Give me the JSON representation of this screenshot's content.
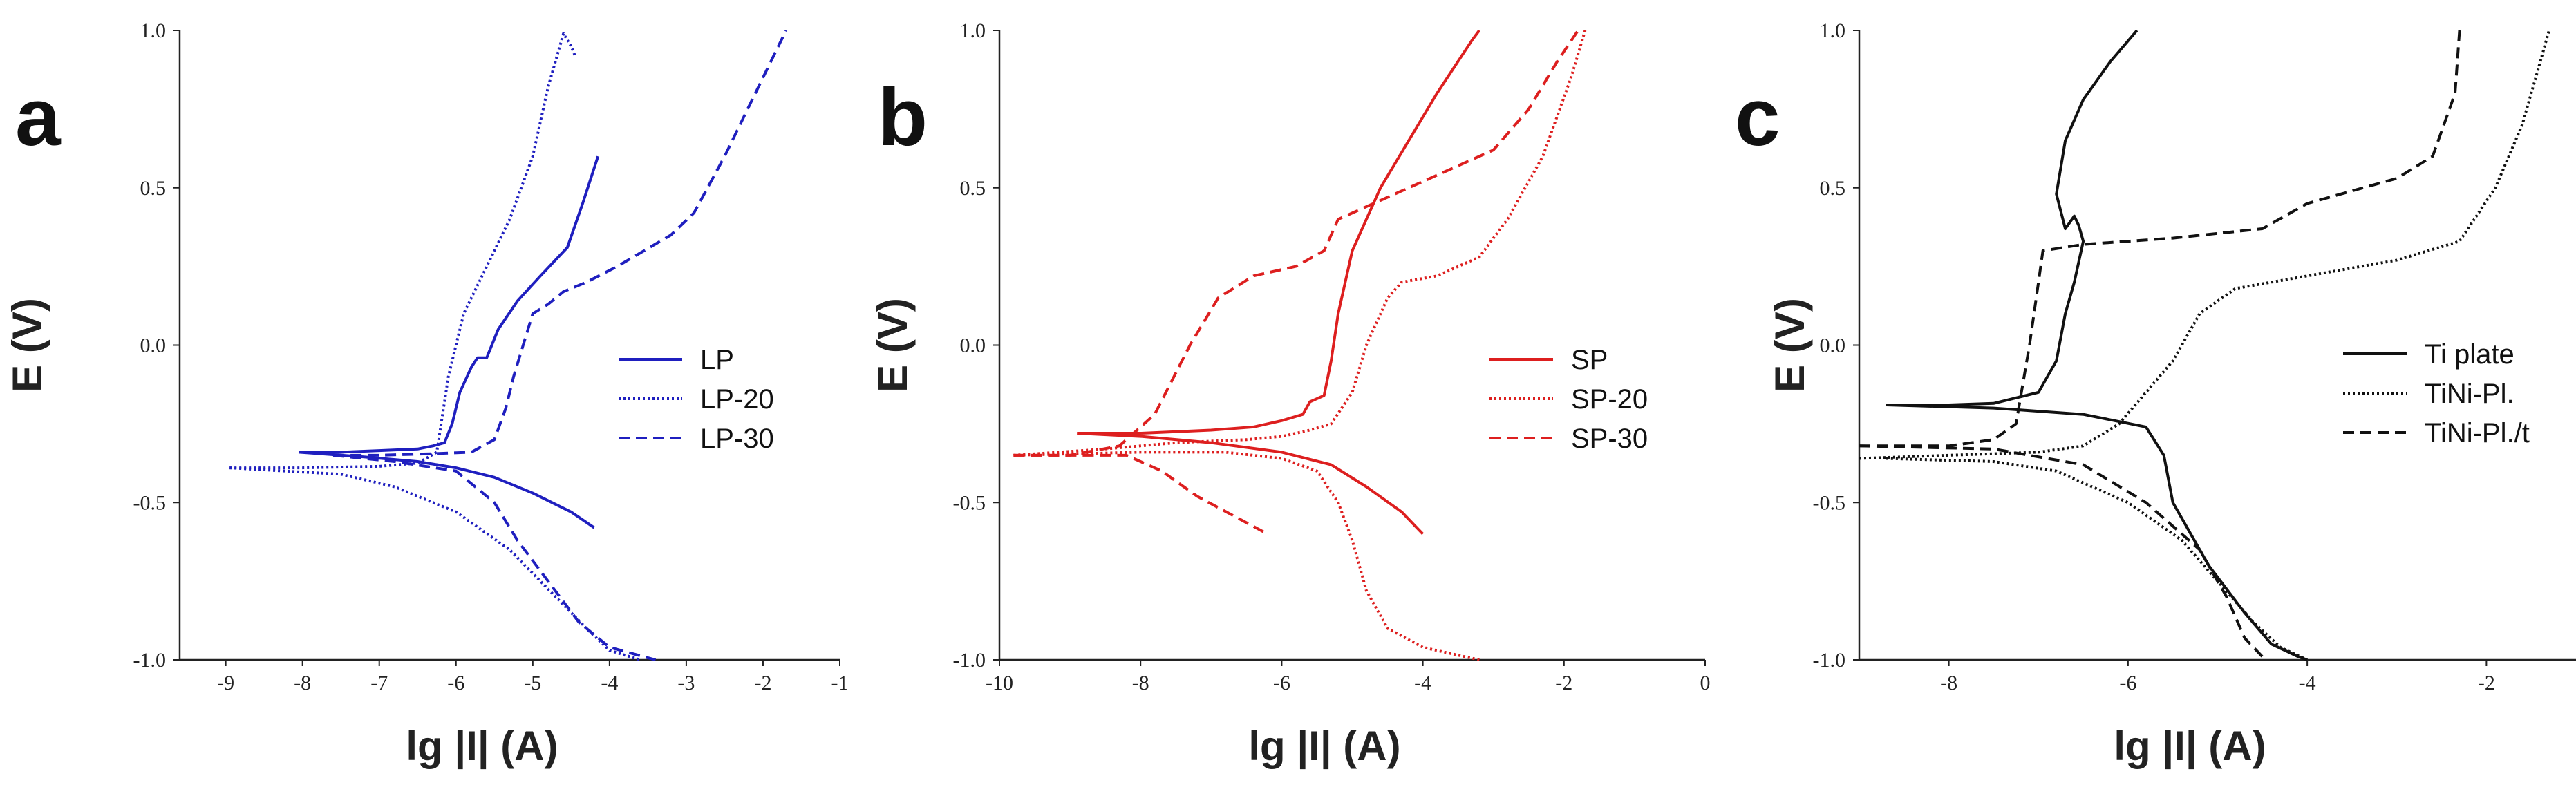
{
  "chart_data": [
    {
      "type": "line",
      "panel": "a",
      "xlabel": "lg |I| (A)",
      "ylabel": "E (V)",
      "xlim": [
        -9.6,
        -1
      ],
      "ylim": [
        -1.0,
        1.0
      ],
      "xticks": [
        -9,
        -8,
        -7,
        -6,
        -5,
        -4,
        -3,
        -2,
        -1
      ],
      "yticks": [
        -1.0,
        -0.5,
        0.0,
        0.5,
        1.0
      ],
      "xtick_labels": [
        "-9",
        "-8",
        "-7",
        "-6",
        "-5",
        "-4",
        "-3",
        "-2",
        "-1"
      ],
      "ytick_labels": [
        "-1.0",
        "-0.5",
        "0.0",
        "0.5",
        "1.0"
      ],
      "color": "#1f1fbf",
      "legend": [
        "LP",
        "LP-20",
        "LP-30"
      ],
      "series": [
        {
          "name": "LP",
          "style": "solid",
          "anodic": [
            [
              -8.05,
              -0.34
            ],
            [
              -7.5,
              -0.34
            ],
            [
              -7.0,
              -0.335
            ],
            [
              -6.5,
              -0.33
            ],
            [
              -6.3,
              -0.32
            ],
            [
              -6.15,
              -0.31
            ],
            [
              -6.05,
              -0.25
            ],
            [
              -5.95,
              -0.15
            ],
            [
              -5.8,
              -0.07
            ],
            [
              -5.72,
              -0.04
            ],
            [
              -5.6,
              -0.04
            ],
            [
              -5.45,
              0.05
            ],
            [
              -5.2,
              0.14
            ],
            [
              -4.9,
              0.22
            ],
            [
              -4.55,
              0.31
            ],
            [
              -4.35,
              0.45
            ],
            [
              -4.15,
              0.6
            ]
          ],
          "cathodic": [
            [
              -8.05,
              -0.34
            ],
            [
              -7.2,
              -0.355
            ],
            [
              -6.5,
              -0.37
            ],
            [
              -6.0,
              -0.39
            ],
            [
              -5.5,
              -0.42
            ],
            [
              -5.0,
              -0.47
            ],
            [
              -4.5,
              -0.53
            ],
            [
              -4.2,
              -0.58
            ]
          ]
        },
        {
          "name": "LP-20",
          "style": "dotted",
          "anodic": [
            [
              -8.95,
              -0.39
            ],
            [
              -8.0,
              -0.39
            ],
            [
              -7.0,
              -0.385
            ],
            [
              -6.5,
              -0.375
            ],
            [
              -6.25,
              -0.34
            ],
            [
              -6.1,
              -0.1
            ],
            [
              -5.9,
              0.1
            ],
            [
              -5.6,
              0.25
            ],
            [
              -5.3,
              0.4
            ],
            [
              -5.0,
              0.6
            ],
            [
              -4.8,
              0.82
            ],
            [
              -4.6,
              0.99
            ],
            [
              -4.5,
              0.95
            ],
            [
              -4.45,
              0.92
            ]
          ],
          "cathodic": [
            [
              -8.95,
              -0.39
            ],
            [
              -7.5,
              -0.41
            ],
            [
              -6.8,
              -0.45
            ],
            [
              -6.0,
              -0.53
            ],
            [
              -5.3,
              -0.65
            ],
            [
              -4.7,
              -0.8
            ],
            [
              -4.3,
              -0.9
            ],
            [
              -4.0,
              -0.97
            ],
            [
              -3.6,
              -1.0
            ]
          ]
        },
        {
          "name": "LP-30",
          "style": "dashed",
          "anodic": [
            [
              -7.6,
              -0.35
            ],
            [
              -7.0,
              -0.35
            ],
            [
              -6.3,
              -0.345
            ],
            [
              -5.8,
              -0.34
            ],
            [
              -5.5,
              -0.3
            ],
            [
              -5.35,
              -0.2
            ],
            [
              -5.25,
              -0.1
            ],
            [
              -5.1,
              0.02
            ],
            [
              -5.0,
              0.1
            ],
            [
              -4.8,
              0.13
            ],
            [
              -4.6,
              0.17
            ],
            [
              -4.3,
              0.2
            ],
            [
              -3.9,
              0.25
            ],
            [
              -3.2,
              0.35
            ],
            [
              -2.9,
              0.42
            ],
            [
              -2.5,
              0.6
            ],
            [
              -2.1,
              0.8
            ],
            [
              -1.8,
              0.95
            ],
            [
              -1.7,
              1.0
            ]
          ],
          "cathodic": [
            [
              -7.6,
              -0.35
            ],
            [
              -6.8,
              -0.37
            ],
            [
              -6.0,
              -0.4
            ],
            [
              -5.5,
              -0.5
            ],
            [
              -5.2,
              -0.62
            ],
            [
              -4.8,
              -0.75
            ],
            [
              -4.4,
              -0.88
            ],
            [
              -4.0,
              -0.96
            ],
            [
              -3.4,
              -1.0
            ]
          ]
        }
      ]
    },
    {
      "type": "line",
      "panel": "b",
      "xlabel": "lg |I| (A)",
      "ylabel": "E (V)",
      "xlim": [
        -10,
        0
      ],
      "ylim": [
        -1.0,
        1.0
      ],
      "xticks": [
        -10,
        -8,
        -6,
        -4,
        -2,
        0
      ],
      "yticks": [
        -1.0,
        -0.5,
        0.0,
        0.5,
        1.0
      ],
      "xtick_labels": [
        "-10",
        "-8",
        "-6",
        "-4",
        "-2",
        "0"
      ],
      "ytick_labels": [
        "-1.0",
        "-0.5",
        "0.0",
        "0.5",
        "1.0"
      ],
      "color": "#dd1f1f",
      "legend": [
        "SP",
        "SP-20",
        "SP-30"
      ],
      "series": [
        {
          "name": "SP",
          "style": "solid",
          "anodic": [
            [
              -8.9,
              -0.28
            ],
            [
              -8.0,
              -0.28
            ],
            [
              -7.0,
              -0.27
            ],
            [
              -6.4,
              -0.26
            ],
            [
              -6.0,
              -0.24
            ],
            [
              -5.7,
              -0.22
            ],
            [
              -5.6,
              -0.18
            ],
            [
              -5.5,
              -0.17
            ],
            [
              -5.4,
              -0.16
            ],
            [
              -5.3,
              -0.05
            ],
            [
              -5.2,
              0.1
            ],
            [
              -5.0,
              0.3
            ],
            [
              -4.6,
              0.5
            ],
            [
              -4.2,
              0.65
            ],
            [
              -3.8,
              0.8
            ],
            [
              -3.3,
              0.97
            ],
            [
              -3.2,
              1.0
            ]
          ],
          "cathodic": [
            [
              -8.9,
              -0.28
            ],
            [
              -8.0,
              -0.29
            ],
            [
              -7.0,
              -0.31
            ],
            [
              -6.0,
              -0.34
            ],
            [
              -5.3,
              -0.38
            ],
            [
              -4.8,
              -0.45
            ],
            [
              -4.3,
              -0.53
            ],
            [
              -4.0,
              -0.6
            ]
          ]
        },
        {
          "name": "SP-20",
          "style": "dotted",
          "anodic": [
            [
              -9.8,
              -0.35
            ],
            [
              -8.5,
              -0.33
            ],
            [
              -7.5,
              -0.31
            ],
            [
              -6.5,
              -0.3
            ],
            [
              -6.0,
              -0.29
            ],
            [
              -5.6,
              -0.27
            ],
            [
              -5.3,
              -0.25
            ],
            [
              -5.0,
              -0.15
            ],
            [
              -4.8,
              0.0
            ],
            [
              -4.5,
              0.15
            ],
            [
              -4.3,
              0.2
            ],
            [
              -3.8,
              0.22
            ],
            [
              -3.2,
              0.28
            ],
            [
              -2.8,
              0.4
            ],
            [
              -2.3,
              0.6
            ],
            [
              -1.9,
              0.85
            ],
            [
              -1.7,
              1.0
            ]
          ],
          "cathodic": [
            [
              -9.8,
              -0.35
            ],
            [
              -8.0,
              -0.34
            ],
            [
              -6.8,
              -0.34
            ],
            [
              -6.0,
              -0.36
            ],
            [
              -5.5,
              -0.4
            ],
            [
              -5.2,
              -0.5
            ],
            [
              -5.0,
              -0.62
            ],
            [
              -4.8,
              -0.78
            ],
            [
              -4.5,
              -0.9
            ],
            [
              -4.0,
              -0.96
            ],
            [
              -3.2,
              -1.0
            ]
          ]
        },
        {
          "name": "SP-30",
          "style": "dashed",
          "anodic": [
            [
              -9.8,
              -0.35
            ],
            [
              -9.0,
              -0.35
            ],
            [
              -8.3,
              -0.32
            ],
            [
              -7.8,
              -0.22
            ],
            [
              -7.3,
              0.0
            ],
            [
              -6.9,
              0.15
            ],
            [
              -6.4,
              0.22
            ],
            [
              -5.8,
              0.25
            ],
            [
              -5.4,
              0.3
            ],
            [
              -5.2,
              0.4
            ],
            [
              -4.8,
              0.44
            ],
            [
              -4.2,
              0.5
            ],
            [
              -3.7,
              0.55
            ],
            [
              -3.0,
              0.62
            ],
            [
              -2.5,
              0.75
            ],
            [
              -2.1,
              0.9
            ],
            [
              -1.8,
              1.0
            ]
          ],
          "cathodic": [
            [
              -9.8,
              -0.35
            ],
            [
              -8.2,
              -0.35
            ],
            [
              -7.7,
              -0.4
            ],
            [
              -7.2,
              -0.48
            ],
            [
              -6.7,
              -0.54
            ],
            [
              -6.2,
              -0.6
            ]
          ]
        }
      ]
    },
    {
      "type": "line",
      "panel": "c",
      "xlabel": "lg |I| (A)",
      "ylabel": "E (V)",
      "xlim": [
        -9,
        -1
      ],
      "ylim": [
        -1.0,
        1.0
      ],
      "xticks": [
        -8,
        -6,
        -4,
        -2
      ],
      "yticks": [
        -1.0,
        -0.5,
        0.0,
        0.5,
        1.0
      ],
      "xtick_labels": [
        "-8",
        "-6",
        "-4",
        "-2"
      ],
      "ytick_labels": [
        "-1.0",
        "-0.5",
        "0.0",
        "0.5",
        "1.0"
      ],
      "color": "#111111",
      "legend": [
        "Ti plate",
        "TiNi-Pl.",
        "TiNi-Pl./t"
      ],
      "series": [
        {
          "name": "Ti plate",
          "style": "solid",
          "anodic": [
            [
              -8.7,
              -0.19
            ],
            [
              -8.0,
              -0.19
            ],
            [
              -7.5,
              -0.185
            ],
            [
              -7.0,
              -0.15
            ],
            [
              -6.8,
              -0.05
            ],
            [
              -6.7,
              0.1
            ],
            [
              -6.6,
              0.2
            ],
            [
              -6.5,
              0.33
            ],
            [
              -6.55,
              0.38
            ],
            [
              -6.6,
              0.41
            ],
            [
              -6.7,
              0.37
            ],
            [
              -6.8,
              0.48
            ],
            [
              -6.7,
              0.65
            ],
            [
              -6.5,
              0.78
            ],
            [
              -6.2,
              0.9
            ],
            [
              -5.9,
              1.0
            ]
          ],
          "cathodic": [
            [
              -8.7,
              -0.19
            ],
            [
              -7.5,
              -0.2
            ],
            [
              -6.5,
              -0.22
            ],
            [
              -5.8,
              -0.26
            ],
            [
              -5.6,
              -0.35
            ],
            [
              -5.5,
              -0.5
            ],
            [
              -5.1,
              -0.7
            ],
            [
              -4.7,
              -0.85
            ],
            [
              -4.4,
              -0.95
            ],
            [
              -4.1,
              -0.99
            ],
            [
              -4.0,
              -1.0
            ]
          ]
        },
        {
          "name": "TiNi-Pl.",
          "style": "dotted",
          "anodic": [
            [
              -9.0,
              -0.36
            ],
            [
              -8.0,
              -0.35
            ],
            [
              -7.0,
              -0.34
            ],
            [
              -6.5,
              -0.32
            ],
            [
              -6.1,
              -0.25
            ],
            [
              -5.8,
              -0.15
            ],
            [
              -5.5,
              -0.05
            ],
            [
              -5.2,
              0.1
            ],
            [
              -4.8,
              0.18
            ],
            [
              -4.0,
              0.22
            ],
            [
              -3.0,
              0.27
            ],
            [
              -2.3,
              0.33
            ],
            [
              -1.9,
              0.5
            ],
            [
              -1.6,
              0.7
            ],
            [
              -1.4,
              0.9
            ],
            [
              -1.3,
              1.0
            ]
          ],
          "cathodic": [
            [
              -8.7,
              -0.36
            ],
            [
              -7.5,
              -0.37
            ],
            [
              -6.8,
              -0.4
            ],
            [
              -6.0,
              -0.5
            ],
            [
              -5.4,
              -0.62
            ],
            [
              -5.0,
              -0.75
            ],
            [
              -4.6,
              -0.88
            ],
            [
              -4.3,
              -0.96
            ],
            [
              -4.0,
              -1.0
            ]
          ]
        },
        {
          "name": "TiNi-Pl./t",
          "style": "dashed",
          "anodic": [
            [
              -9.0,
              -0.32
            ],
            [
              -8.0,
              -0.32
            ],
            [
              -7.5,
              -0.3
            ],
            [
              -7.25,
              -0.25
            ],
            [
              -7.1,
              0.0
            ],
            [
              -7.0,
              0.2
            ],
            [
              -6.95,
              0.3
            ],
            [
              -6.5,
              0.32
            ],
            [
              -5.5,
              0.34
            ],
            [
              -4.5,
              0.37
            ],
            [
              -4.0,
              0.45
            ],
            [
              -3.0,
              0.53
            ],
            [
              -2.6,
              0.6
            ],
            [
              -2.35,
              0.8
            ],
            [
              -2.3,
              1.0
            ]
          ],
          "cathodic": [
            [
              -9.0,
              -0.32
            ],
            [
              -7.5,
              -0.33
            ],
            [
              -6.5,
              -0.38
            ],
            [
              -5.8,
              -0.5
            ],
            [
              -5.2,
              -0.65
            ],
            [
              -4.9,
              -0.8
            ],
            [
              -4.7,
              -0.93
            ],
            [
              -4.5,
              -0.99
            ]
          ]
        }
      ]
    }
  ]
}
